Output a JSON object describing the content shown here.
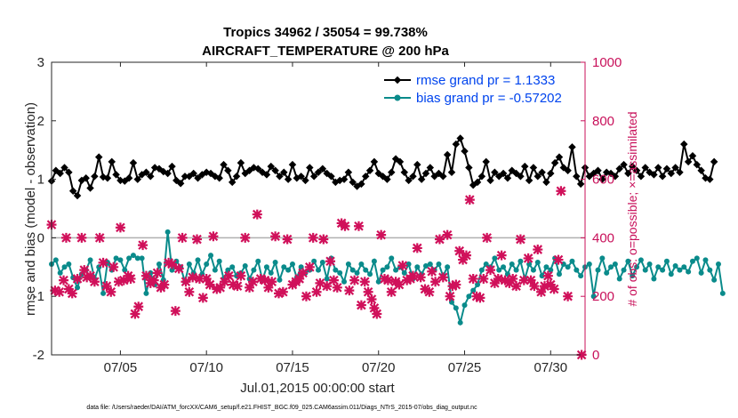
{
  "chart_data": {
    "type": "line",
    "title_line1": "Tropics 34962 / 35054 = 99.738%",
    "title_line2": "AIRCRAFT_TEMPERATURE @ 200 hPa",
    "xlabel": "Jul.01,2015 00:00:00 start",
    "ylabel": "rmse and bias (model - observation)",
    "y2label": "# of obs: o=possible; ×=assimilated",
    "x_ticks": [
      "07/05",
      "07/10",
      "07/15",
      "07/20",
      "07/25",
      "07/30"
    ],
    "x_tick_days": [
      5,
      10,
      15,
      20,
      25,
      30
    ],
    "xlim": [
      1,
      32
    ],
    "ylim": [
      -2,
      3
    ],
    "y_ticks": [
      "-2",
      "-1",
      "0",
      "1",
      "2",
      "3"
    ],
    "y2lim": [
      0,
      1000
    ],
    "y2_ticks": [
      "0",
      "200",
      "400",
      "600",
      "800",
      "1000"
    ],
    "zero_line": 0,
    "footer": "data file: /Users/raeder/DAI/ATM_forcXX/CAM6_setup/f.e21.FHIST_BGC.f09_025.CAM6assim.011/Diags_NTrS_2015-07/obs_diag_output.nc",
    "series": [
      {
        "name": "rmse grand pr = 1.1333",
        "color": "#000000",
        "marker": "diamond",
        "x_start": 1.0,
        "x_step": 0.25,
        "values": [
          0.97,
          1.15,
          1.1,
          1.2,
          1.12,
          0.8,
          0.72,
          0.98,
          1.02,
          0.85,
          1.05,
          1.38,
          1.04,
          1.02,
          1.3,
          1.08,
          0.98,
          0.97,
          1.02,
          1.28,
          1.0,
          1.08,
          1.12,
          1.05,
          1.2,
          1.18,
          1.13,
          1.1,
          1.22,
          0.98,
          0.93,
          1.05,
          1.05,
          1.1,
          1.02,
          1.08,
          1.12,
          1.1,
          1.05,
          1.02,
          1.25,
          1.15,
          0.95,
          1.05,
          1.28,
          1.1,
          1.15,
          1.2,
          1.18,
          1.12,
          1.08,
          1.22,
          1.15,
          1.05,
          1.12,
          1.0,
          1.25,
          1.02,
          1.05,
          0.98,
          1.2,
          1.05,
          1.12,
          1.18,
          1.1,
          1.05,
          0.95,
          0.98,
          1.0,
          1.12,
          0.95,
          0.88,
          0.92,
          1.05,
          1.15,
          1.3,
          1.1,
          1.05,
          1.0,
          1.12,
          1.35,
          1.3,
          1.12,
          0.98,
          1.05,
          1.25,
          1.0,
          1.1,
          1.2,
          1.05,
          1.1,
          1.05,
          1.42,
          1.12,
          1.6,
          1.7,
          1.48,
          1.2,
          0.9,
          0.95,
          1.05,
          1.3,
          0.98,
          1.12,
          1.05,
          1.1,
          1.02,
          1.15,
          1.1,
          1.05,
          1.22,
          0.98,
          1.2,
          1.05,
          1.12,
          0.95,
          1.1,
          1.28,
          1.38,
          1.2,
          1.15,
          1.55,
          1.05,
          0.92,
          1.2,
          1.05,
          1.1,
          1.15,
          1.0,
          1.12,
          1.1,
          1.05,
          1.18,
          1.25,
          1.1,
          1.22,
          1.15,
          1.05,
          1.2,
          1.12,
          1.08,
          1.2,
          1.05,
          1.18,
          1.1,
          1.2,
          1.12,
          1.6,
          1.3,
          1.4,
          1.25,
          1.15,
          1.02,
          1.0,
          1.3
        ]
      },
      {
        "name": "bias grand pr = -0.57202",
        "color": "#0a8b8b",
        "marker": "circle",
        "x_start": 1.0,
        "x_step": 0.25,
        "values": [
          -0.45,
          -0.38,
          -0.6,
          -0.5,
          -0.45,
          -0.68,
          -0.85,
          -0.62,
          -0.55,
          -0.38,
          -0.7,
          -0.5,
          -0.95,
          -0.42,
          -0.55,
          -0.35,
          -0.38,
          -0.55,
          -0.35,
          -0.3,
          -0.35,
          -0.35,
          -0.95,
          -0.6,
          -0.8,
          -0.45,
          -0.72,
          0.1,
          -0.55,
          -0.4,
          -0.5,
          -0.75,
          -0.45,
          -0.6,
          -0.38,
          -0.62,
          -0.45,
          -0.3,
          -0.55,
          -0.4,
          -0.7,
          -0.55,
          -0.5,
          -0.65,
          -0.6,
          -0.48,
          -0.7,
          -0.55,
          -0.4,
          -0.72,
          -0.5,
          -0.6,
          -0.42,
          -0.72,
          -0.5,
          -0.55,
          -0.45,
          -0.68,
          -0.5,
          -0.6,
          -0.55,
          -0.4,
          -0.55,
          -0.42,
          -0.7,
          -0.35,
          -0.55,
          -0.6,
          -0.75,
          -0.45,
          -0.55,
          -0.6,
          -0.45,
          -0.55,
          -0.62,
          -0.4,
          -0.75,
          -0.55,
          -0.5,
          -0.35,
          -0.55,
          -0.5,
          -0.6,
          -0.45,
          -0.7,
          -0.5,
          -0.62,
          -0.48,
          -0.45,
          -0.55,
          -0.45,
          -0.65,
          -0.5,
          -1.1,
          -1.2,
          -1.45,
          -1.15,
          -1.0,
          -0.9,
          -0.8,
          -0.55,
          -0.45,
          -0.5,
          -0.35,
          -0.55,
          -0.5,
          -0.62,
          -0.45,
          -0.55,
          -0.4,
          -0.7,
          -0.45,
          -0.55,
          -0.42,
          -0.65,
          -0.5,
          -0.55,
          -0.35,
          -0.62,
          -0.45,
          -0.5,
          -0.4,
          -0.55,
          -0.65,
          -0.5,
          -0.45,
          -1.0,
          -0.55,
          -0.35,
          -0.6,
          -0.5,
          -0.45,
          -0.7,
          -0.55,
          -0.4,
          -0.65,
          -0.5,
          -0.38,
          -0.55,
          -0.45,
          -0.7,
          -0.5,
          -0.55,
          -0.4,
          -0.62,
          -0.48,
          -0.55,
          -0.5,
          -0.58,
          -0.4,
          -0.35,
          -0.6,
          -0.38,
          -0.55,
          -0.72,
          -0.45,
          -0.95
        ]
      },
      {
        "name": "# obs assimilated",
        "color": "#d0105a",
        "marker": "cross",
        "axis": "right",
        "points": [
          [
            1.0,
            445
          ],
          [
            1.2,
            220
          ],
          [
            1.45,
            215
          ],
          [
            1.7,
            255
          ],
          [
            1.85,
            400
          ],
          [
            2.0,
            225
          ],
          [
            2.2,
            210
          ],
          [
            2.5,
            260
          ],
          [
            2.75,
            400
          ],
          [
            2.9,
            290
          ],
          [
            3.05,
            265
          ],
          [
            3.25,
            270
          ],
          [
            3.5,
            250
          ],
          [
            3.8,
            400
          ],
          [
            4.0,
            315
          ],
          [
            4.2,
            235
          ],
          [
            4.45,
            215
          ],
          [
            4.6,
            300
          ],
          [
            4.9,
            250
          ],
          [
            5.0,
            435
          ],
          [
            5.2,
            255
          ],
          [
            5.45,
            270
          ],
          [
            5.6,
            260
          ],
          [
            5.85,
            140
          ],
          [
            6.05,
            165
          ],
          [
            6.3,
            375
          ],
          [
            6.5,
            270
          ],
          [
            6.75,
            245
          ],
          [
            6.95,
            255
          ],
          [
            7.15,
            280
          ],
          [
            7.35,
            230
          ],
          [
            7.55,
            240
          ],
          [
            7.8,
            315
          ],
          [
            8.0,
            310
          ],
          [
            8.2,
            150
          ],
          [
            8.4,
            295
          ],
          [
            8.6,
            400
          ],
          [
            8.8,
            250
          ],
          [
            9.0,
            215
          ],
          [
            9.2,
            265
          ],
          [
            9.45,
            395
          ],
          [
            9.6,
            260
          ],
          [
            9.8,
            195
          ],
          [
            10.0,
            260
          ],
          [
            10.2,
            240
          ],
          [
            10.4,
            405
          ],
          [
            10.6,
            225
          ],
          [
            10.8,
            230
          ],
          [
            11.05,
            250
          ],
          [
            11.3,
            270
          ],
          [
            11.55,
            240
          ],
          [
            11.8,
            235
          ],
          [
            12.0,
            270
          ],
          [
            12.25,
            400
          ],
          [
            12.5,
            230
          ],
          [
            12.7,
            250
          ],
          [
            12.95,
            480
          ],
          [
            13.15,
            260
          ],
          [
            13.4,
            255
          ],
          [
            13.6,
            230
          ],
          [
            13.8,
            250
          ],
          [
            14.0,
            405
          ],
          [
            14.2,
            210
          ],
          [
            14.45,
            215
          ],
          [
            14.7,
            395
          ],
          [
            15.0,
            240
          ],
          [
            15.2,
            250
          ],
          [
            15.4,
            260
          ],
          [
            15.6,
            280
          ],
          [
            15.8,
            200
          ],
          [
            16.0,
            300
          ],
          [
            16.2,
            400
          ],
          [
            16.4,
            215
          ],
          [
            16.6,
            245
          ],
          [
            16.8,
            395
          ],
          [
            17.0,
            235
          ],
          [
            17.2,
            320
          ],
          [
            17.4,
            255
          ],
          [
            17.6,
            230
          ],
          [
            17.85,
            450
          ],
          [
            18.05,
            440
          ],
          [
            18.3,
            220
          ],
          [
            18.6,
            255
          ],
          [
            18.85,
            440
          ],
          [
            19.0,
            170
          ],
          [
            19.2,
            250
          ],
          [
            19.4,
            215
          ],
          [
            19.6,
            190
          ],
          [
            19.75,
            160
          ],
          [
            19.9,
            140
          ],
          [
            20.15,
            410
          ],
          [
            20.35,
            260
          ],
          [
            20.55,
            255
          ],
          [
            20.75,
            215
          ],
          [
            21.0,
            250
          ],
          [
            21.2,
            240
          ],
          [
            21.4,
            305
          ],
          [
            21.65,
            255
          ],
          [
            21.85,
            260
          ],
          [
            22.0,
            270
          ],
          [
            22.25,
            365
          ],
          [
            22.45,
            265
          ],
          [
            22.7,
            225
          ],
          [
            22.95,
            215
          ],
          [
            23.1,
            285
          ],
          [
            23.3,
            250
          ],
          [
            23.55,
            395
          ],
          [
            23.75,
            265
          ],
          [
            24.0,
            410
          ],
          [
            24.15,
            200
          ],
          [
            24.3,
            235
          ],
          [
            24.5,
            240
          ],
          [
            24.7,
            355
          ],
          [
            24.9,
            325
          ],
          [
            25.1,
            340
          ],
          [
            25.3,
            530
          ],
          [
            25.5,
            260
          ],
          [
            25.7,
            200
          ],
          [
            25.9,
            195
          ],
          [
            26.1,
            260
          ],
          [
            26.3,
            400
          ],
          [
            26.5,
            290
          ],
          [
            26.75,
            245
          ],
          [
            26.95,
            260
          ],
          [
            27.15,
            340
          ],
          [
            27.35,
            255
          ],
          [
            27.6,
            245
          ],
          [
            27.8,
            260
          ],
          [
            28.0,
            235
          ],
          [
            28.25,
            395
          ],
          [
            28.45,
            255
          ],
          [
            28.7,
            330
          ],
          [
            28.85,
            255
          ],
          [
            29.05,
            235
          ],
          [
            29.25,
            360
          ],
          [
            29.45,
            215
          ],
          [
            29.65,
            235
          ],
          [
            29.85,
            270
          ],
          [
            30.0,
            240
          ],
          [
            30.2,
            225
          ],
          [
            30.45,
            325
          ],
          [
            30.6,
            560
          ],
          [
            31.0,
            200
          ],
          [
            31.8,
            0
          ]
        ]
      }
    ]
  }
}
